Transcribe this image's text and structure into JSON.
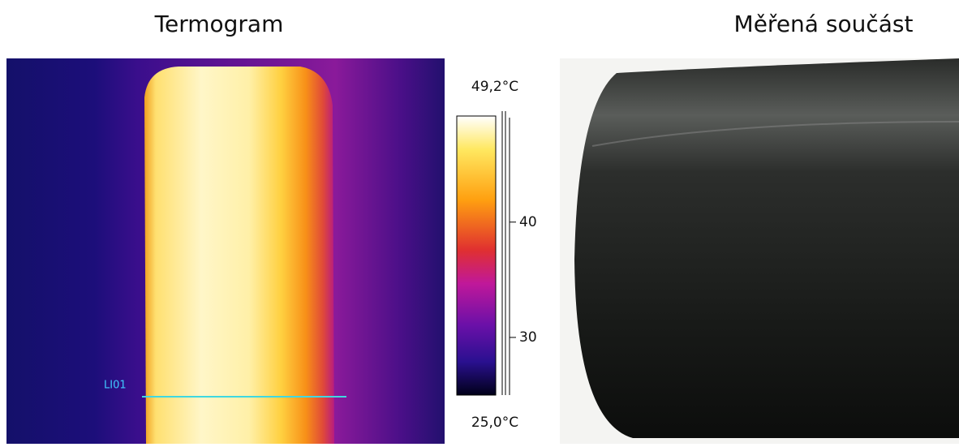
{
  "thermogram": {
    "title": "Termogram",
    "line_label": "LI01",
    "colorbar": {
      "max": {
        "value": 49.2,
        "label": "49,2°C"
      },
      "min": {
        "value": 25,
        "label": "25,0°C"
      },
      "ticks": [
        40,
        30
      ]
    }
  },
  "photo": {
    "title": "Měřená součást"
  }
}
